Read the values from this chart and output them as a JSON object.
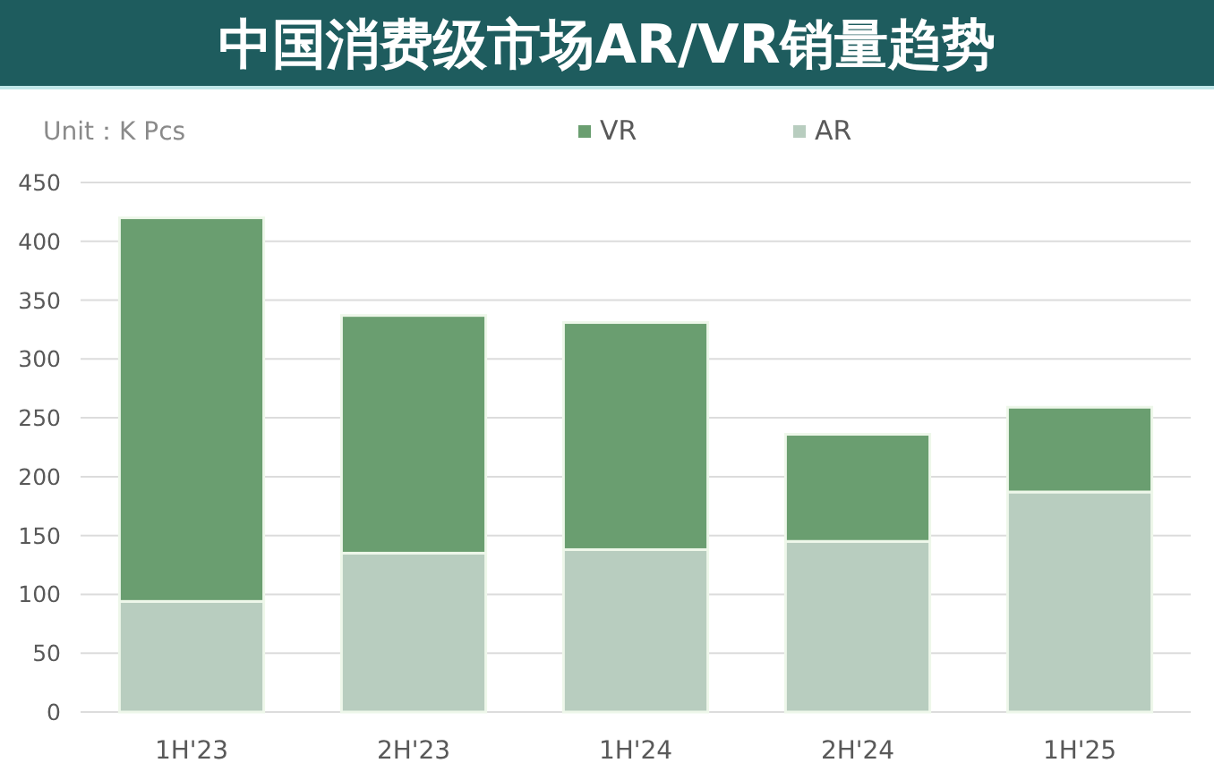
{
  "chart_data": {
    "type": "bar",
    "title": "中国消费级市场AR/VR销量趋势",
    "ylabel": "Unit：K Pcs",
    "categories": [
      "1H'23",
      "2H'23",
      "1H'24",
      "2H'24",
      "1H'25"
    ],
    "stacked": true,
    "series": [
      {
        "name": "AR",
        "color": "#b8cdbf",
        "values": [
          94,
          135,
          138,
          145,
          187
        ]
      },
      {
        "name": "VR",
        "color": "#6a9e70",
        "values": [
          326,
          202,
          193,
          91,
          72
        ]
      }
    ],
    "ylim": [
      0,
      450
    ],
    "yticks": [
      0,
      50,
      100,
      150,
      200,
      250,
      300,
      350,
      400,
      450
    ],
    "grid": "y",
    "legend": "top"
  }
}
